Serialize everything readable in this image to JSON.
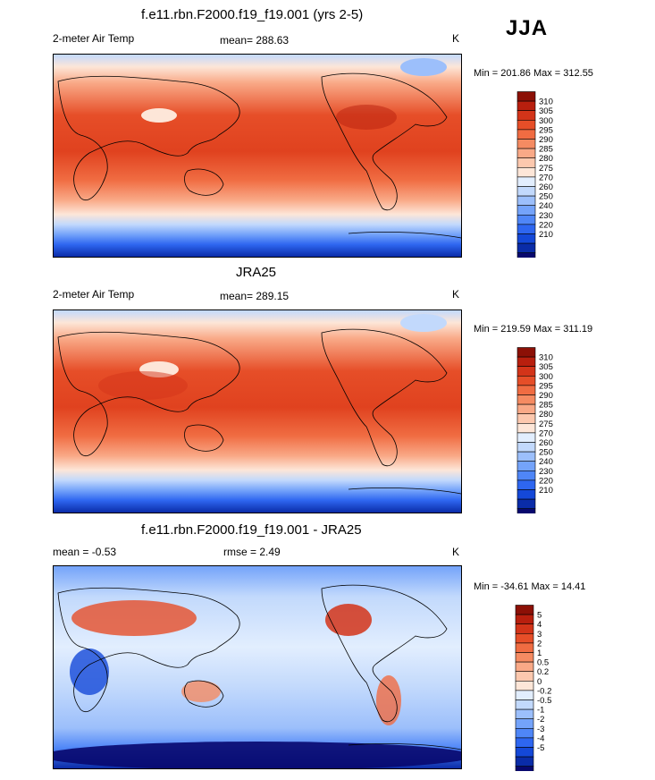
{
  "season": "JJA",
  "colors": {
    "abs_scale": [
      "#08086e",
      "#0a2ca8",
      "#1448d8",
      "#2e66f0",
      "#4f86f7",
      "#74a3fa",
      "#9cbffb",
      "#c2d9fc",
      "#e2eefe",
      "#fde6d8",
      "#fcc8ae",
      "#f9a987",
      "#f58b62",
      "#f06c42",
      "#e64e28",
      "#d33419",
      "#b81f0e",
      "#8c1006"
    ],
    "diff_scale": [
      "#08086e",
      "#0a2ca8",
      "#1448d8",
      "#2e66f0",
      "#4f86f7",
      "#74a3fa",
      "#9cbffb",
      "#c2d9fc",
      "#e2eefe",
      "#fde6d8",
      "#fcc8ae",
      "#f9a987",
      "#f58b62",
      "#f06c42",
      "#e64e28",
      "#d33419",
      "#b81f0e",
      "#8c1006"
    ]
  },
  "chart_data": [
    {
      "type": "heatmap",
      "title": "f.e11.rbn.F2000.f19_f19.001 (yrs 2-5)",
      "left_label": "2-meter Air Temp",
      "mean_text": "mean= 288.63",
      "units": "K",
      "minmax_text": "Min = 201.86 Max = 312.55",
      "colorbar_levels": [
        "310",
        "305",
        "300",
        "295",
        "290",
        "285",
        "280",
        "275",
        "270",
        "260",
        "250",
        "240",
        "230",
        "220",
        "210"
      ],
      "stats": {
        "mean": 288.63,
        "min": 201.86,
        "max": 312.55
      }
    },
    {
      "type": "heatmap",
      "title": "JRA25",
      "left_label": "2-meter Air Temp",
      "mean_text": "mean= 289.15",
      "units": "K",
      "minmax_text": "Min = 219.59 Max = 311.19",
      "colorbar_levels": [
        "310",
        "305",
        "300",
        "295",
        "290",
        "285",
        "280",
        "275",
        "270",
        "260",
        "250",
        "240",
        "230",
        "220",
        "210"
      ],
      "stats": {
        "mean": 289.15,
        "min": 219.59,
        "max": 311.19
      }
    },
    {
      "type": "heatmap",
      "title": "f.e11.rbn.F2000.f19_f19.001 - JRA25",
      "left_label": "mean =  -0.53",
      "mean_text": "rmse =   2.49",
      "units": "K",
      "minmax_text": "Min = -34.61 Max =  14.41",
      "colorbar_levels": [
        "5",
        "4",
        "3",
        "2",
        "1",
        "0.5",
        "0.2",
        "0",
        "-0.2",
        "-0.5",
        "-1",
        "-2",
        "-3",
        "-4",
        "-5"
      ],
      "stats": {
        "mean": -0.53,
        "rmse": 2.49,
        "min": -34.61,
        "max": 14.41
      }
    }
  ]
}
